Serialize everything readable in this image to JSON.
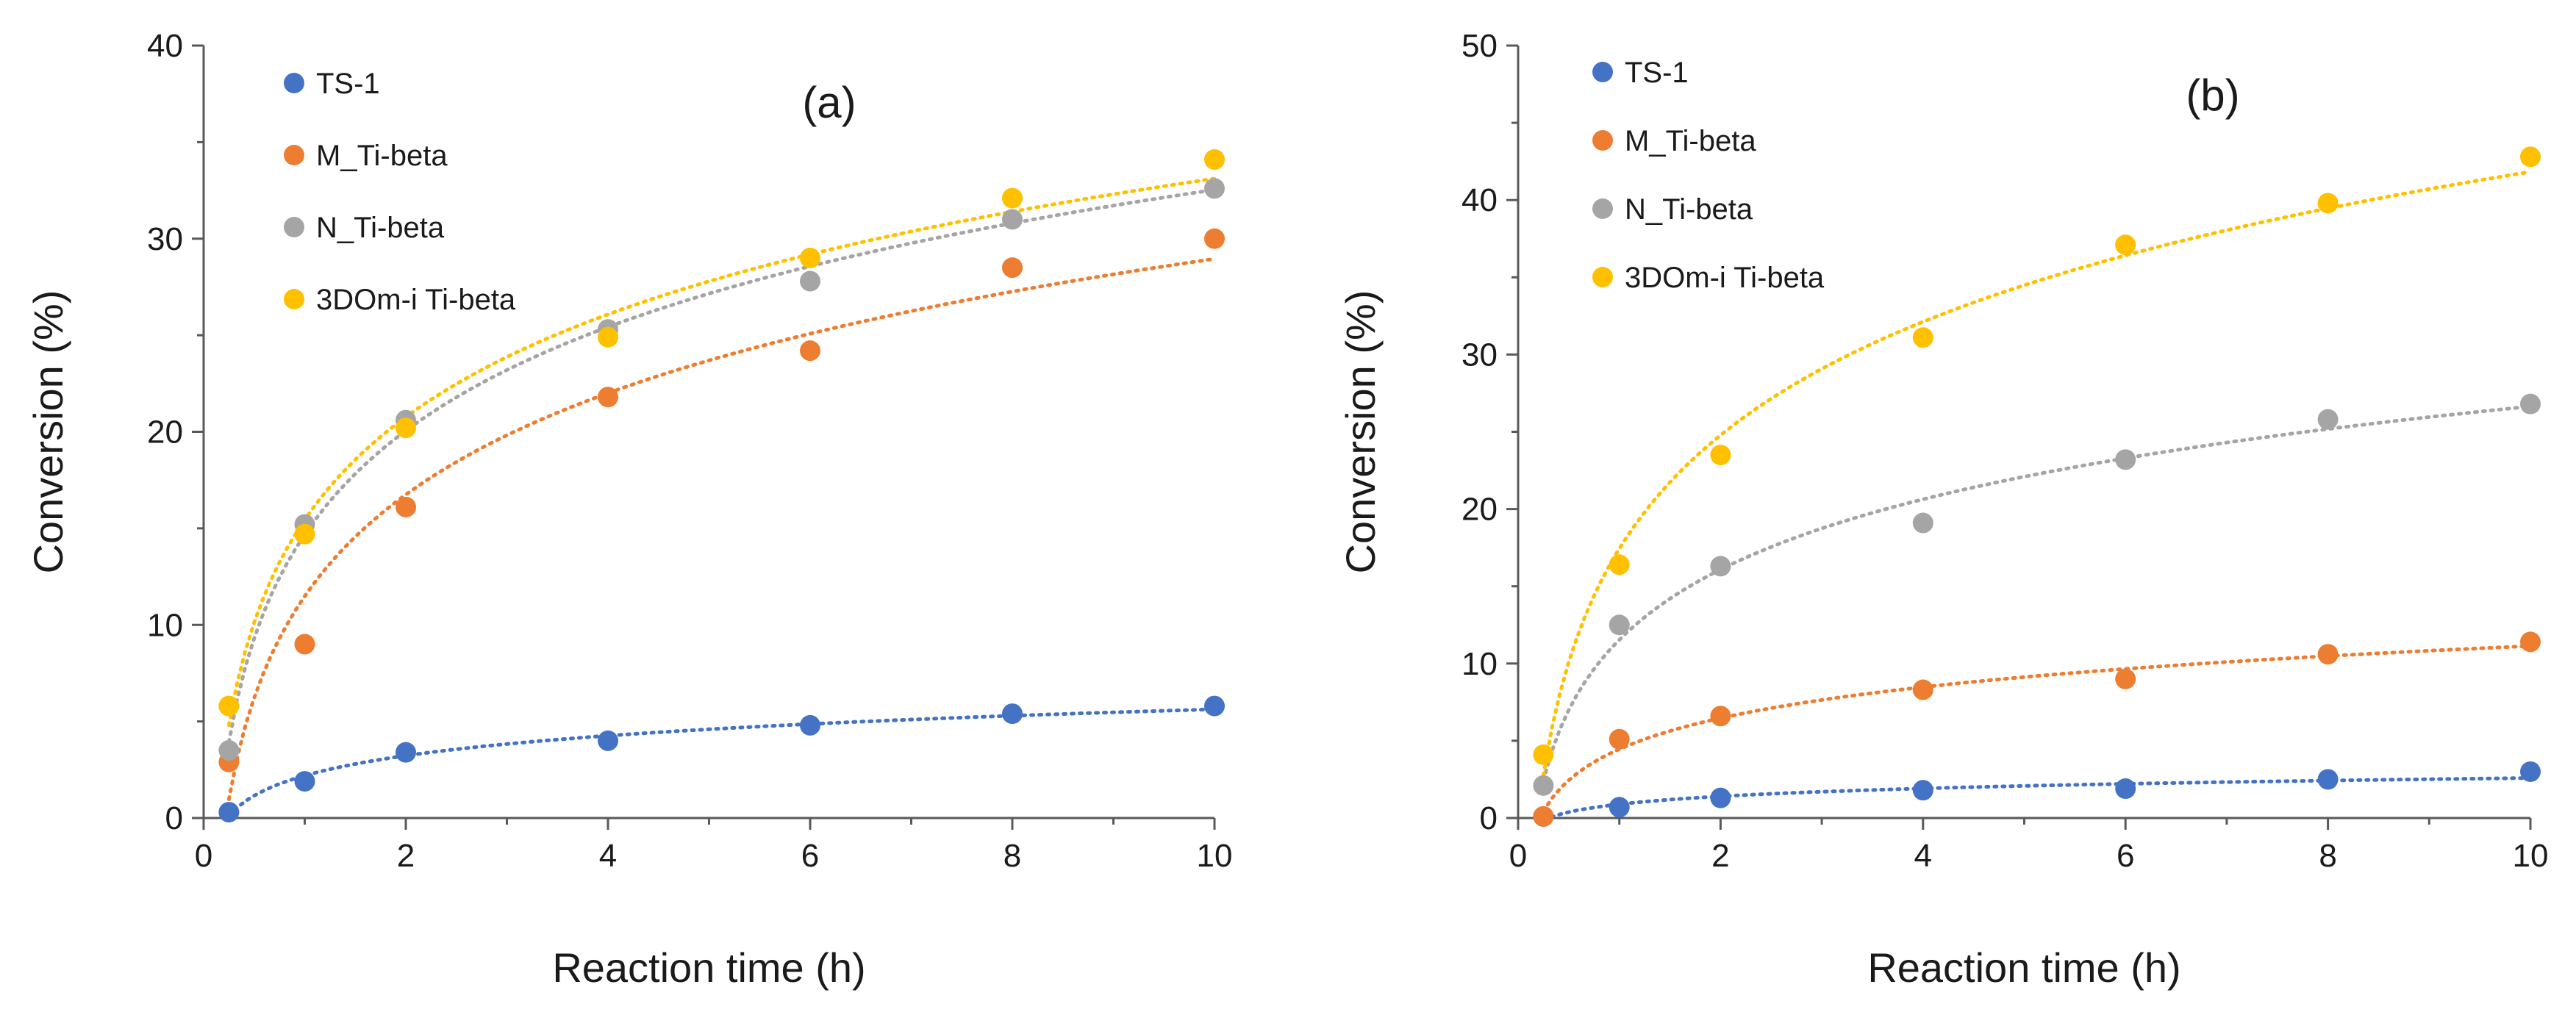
{
  "chart_data": [
    {
      "type": "scatter",
      "panel_label": "(a)",
      "xlabel": "Reaction time (h)",
      "ylabel": "Conversion (%)",
      "xlim": [
        0,
        10
      ],
      "ylim": [
        0,
        40
      ],
      "x_ticks": [
        0,
        2,
        4,
        6,
        8,
        10
      ],
      "y_ticks": [
        0,
        10,
        20,
        30,
        40
      ],
      "trendline": "dotted logarithmic fit",
      "legend_position": "top-left",
      "series": [
        {
          "name": "TS-1",
          "color": "#4472C4",
          "x": [
            0.25,
            1,
            2,
            4,
            6,
            8,
            10
          ],
          "y": [
            0.3,
            1.9,
            3.4,
            4.0,
            4.8,
            5.4,
            5.8
          ]
        },
        {
          "name": "M_Ti-beta",
          "color": "#ED7D31",
          "x": [
            0.25,
            1,
            2,
            4,
            6,
            8,
            10
          ],
          "y": [
            2.9,
            9.0,
            16.1,
            21.8,
            24.2,
            28.5,
            30.0
          ]
        },
        {
          "name": "N_Ti-beta",
          "color": "#A5A5A5",
          "x": [
            0.25,
            1,
            2,
            4,
            6,
            8,
            10
          ],
          "y": [
            3.5,
            15.2,
            20.6,
            25.3,
            27.8,
            31.0,
            32.6
          ]
        },
        {
          "name": "3DOm-i Ti-beta",
          "color": "#FFC000",
          "x": [
            0.25,
            1,
            2,
            4,
            6,
            8,
            10
          ],
          "y": [
            5.8,
            14.7,
            20.2,
            24.9,
            29.0,
            32.1,
            34.1
          ]
        }
      ]
    },
    {
      "type": "scatter",
      "panel_label": "(b)",
      "xlabel": "Reaction time (h)",
      "ylabel": "Conversion (%)",
      "xlim": [
        0,
        10
      ],
      "ylim": [
        0,
        50
      ],
      "x_ticks": [
        0,
        2,
        4,
        6,
        8,
        10
      ],
      "y_ticks": [
        0,
        10,
        20,
        30,
        40,
        50
      ],
      "trendline": "dotted logarithmic fit",
      "legend_position": "top-left",
      "series": [
        {
          "name": "TS-1",
          "color": "#4472C4",
          "x": [
            0.25,
            1,
            2,
            4,
            6,
            8,
            10
          ],
          "y": [
            0.1,
            0.7,
            1.3,
            1.8,
            1.9,
            2.5,
            3.0
          ]
        },
        {
          "name": "M_Ti-beta",
          "color": "#ED7D31",
          "x": [
            0.25,
            1,
            2,
            4,
            6,
            8,
            10
          ],
          "y": [
            0.1,
            5.1,
            6.6,
            8.3,
            9.0,
            10.6,
            11.4
          ]
        },
        {
          "name": "N_Ti-beta",
          "color": "#A5A5A5",
          "x": [
            0.25,
            1,
            2,
            4,
            6,
            8,
            10
          ],
          "y": [
            2.1,
            12.5,
            16.3,
            19.1,
            23.2,
            25.8,
            26.8
          ]
        },
        {
          "name": "3DOm-i Ti-beta",
          "color": "#FFC000",
          "x": [
            0.25,
            1,
            2,
            4,
            6,
            8,
            10
          ],
          "y": [
            4.1,
            16.4,
            23.5,
            31.1,
            37.1,
            39.8,
            42.8
          ]
        }
      ]
    }
  ]
}
